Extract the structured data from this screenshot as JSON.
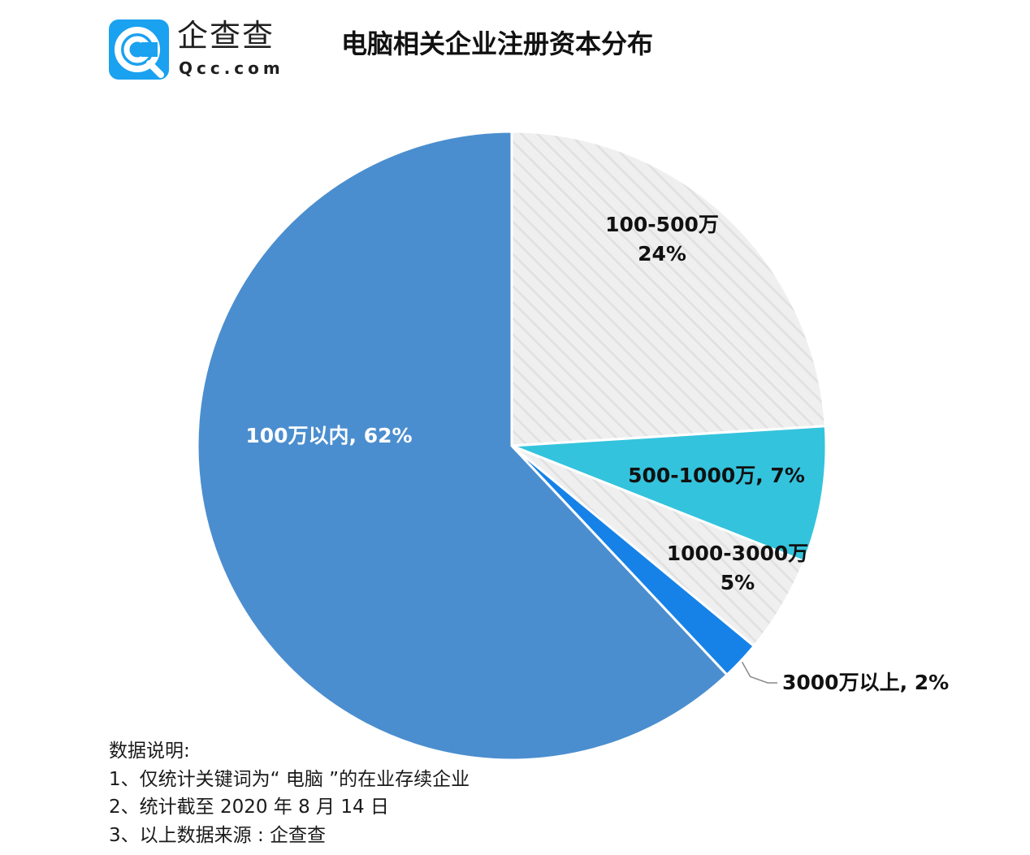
{
  "logo": {
    "name": "企查查",
    "domain": "Qcc.com",
    "icon": "qcc-magnifier-logo-icon",
    "color": "#1aa1f0"
  },
  "chart_data": {
    "type": "pie",
    "title": "电脑相关企业注册资本分布",
    "start_angle_deg": 0,
    "direction": "clockwise",
    "slices": [
      {
        "category": "100-500万",
        "value": 24,
        "percent_label": "24%",
        "label_text": "100-500万\n24%",
        "color": "#ededed",
        "pattern": "diagonal-hatch",
        "label_color": "#111111"
      },
      {
        "category": "500-1000万",
        "value": 7,
        "percent_label": "7%",
        "label_text": "500-1000万, 7%",
        "color": "#34c3dd",
        "pattern": "none",
        "label_color": "#111111"
      },
      {
        "category": "1000-3000万",
        "value": 5,
        "percent_label": "5%",
        "label_text": "1000-3000万\n5%",
        "color": "#ededed",
        "pattern": "diagonal-hatch",
        "label_color": "#111111"
      },
      {
        "category": "3000万以上",
        "value": 2,
        "percent_label": "2%",
        "label_text": "3000万以上, 2%",
        "color": "#1682e8",
        "pattern": "none",
        "label_color": "#111111",
        "leader_line": true
      },
      {
        "category": "100万以内",
        "value": 62,
        "percent_label": "62%",
        "label_text": "100万以内, 62%",
        "color": "#4b8ecf",
        "pattern": "none",
        "label_color": "#ffffff"
      }
    ],
    "legend": "none"
  },
  "notes": {
    "heading": "数据说明:",
    "lines": [
      "1、仅统计关键词为“ 电脑 ”的在业存续企业",
      "2、统计截至 2020 年 8 月 14 日",
      "3、以上数据来源 : 企查查"
    ]
  }
}
